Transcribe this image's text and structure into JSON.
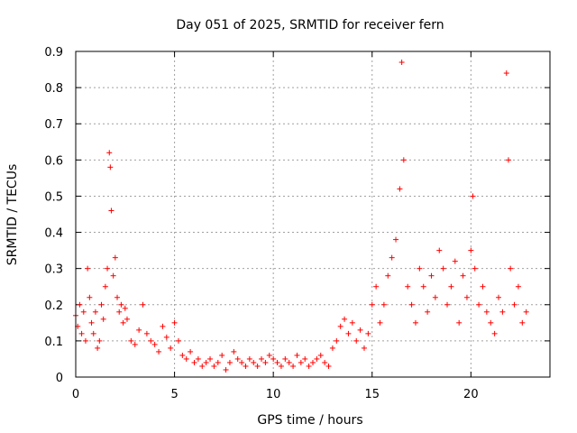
{
  "chart_data": {
    "type": "scatter",
    "title": "Day 051 of 2025, SRMTID for receiver fern",
    "xlabel": "GPS time / hours",
    "ylabel": "SRMTID / TECUs",
    "xlim": [
      0,
      24
    ],
    "ylim": [
      0,
      0.9
    ],
    "xticks": [
      0,
      5,
      10,
      15,
      20
    ],
    "yticks": [
      0,
      0.1,
      0.2,
      0.3,
      0.4,
      0.5,
      0.6,
      0.7,
      0.8,
      0.9
    ],
    "xtick_labels": [
      "0",
      "5",
      "10",
      "15",
      "20"
    ],
    "ytick_labels": [
      "0",
      "0.1",
      "0.2",
      "0.3",
      "0.4",
      "0.5",
      "0.6",
      "0.7",
      "0.8",
      "0.9"
    ],
    "grid": true,
    "marker": "plus",
    "color": "#ff0000",
    "series": [
      {
        "name": "SRMTID",
        "x": [
          0.0,
          0.1,
          0.2,
          0.3,
          0.4,
          0.5,
          0.6,
          0.7,
          0.8,
          0.9,
          1.0,
          1.1,
          1.2,
          1.3,
          1.4,
          1.5,
          1.6,
          1.7,
          1.75,
          1.8,
          1.9,
          2.0,
          2.1,
          2.2,
          2.3,
          2.4,
          2.5,
          2.6,
          2.8,
          3.0,
          3.2,
          3.4,
          3.6,
          3.8,
          4.0,
          4.2,
          4.4,
          4.6,
          4.8,
          5.0,
          5.2,
          5.4,
          5.6,
          5.8,
          6.0,
          6.2,
          6.4,
          6.6,
          6.8,
          7.0,
          7.2,
          7.4,
          7.6,
          7.8,
          8.0,
          8.2,
          8.4,
          8.6,
          8.8,
          9.0,
          9.2,
          9.4,
          9.6,
          9.8,
          10.0,
          10.2,
          10.4,
          10.6,
          10.8,
          11.0,
          11.2,
          11.4,
          11.6,
          11.8,
          12.0,
          12.2,
          12.4,
          12.6,
          12.8,
          13.0,
          13.2,
          13.4,
          13.6,
          13.8,
          14.0,
          14.2,
          14.4,
          14.6,
          14.8,
          15.0,
          15.2,
          15.4,
          15.6,
          15.8,
          16.0,
          16.2,
          16.4,
          16.5,
          16.6,
          16.8,
          17.0,
          17.2,
          17.4,
          17.6,
          17.8,
          18.0,
          18.2,
          18.4,
          18.6,
          18.8,
          19.0,
          19.2,
          19.4,
          19.6,
          19.8,
          20.0,
          20.1,
          20.2,
          20.4,
          20.6,
          20.8,
          21.0,
          21.2,
          21.4,
          21.6,
          21.8,
          21.9,
          22.0,
          22.2,
          22.4,
          22.6,
          22.8
        ],
        "y": [
          0.17,
          0.14,
          0.2,
          0.12,
          0.18,
          0.1,
          0.3,
          0.22,
          0.15,
          0.12,
          0.18,
          0.08,
          0.1,
          0.2,
          0.16,
          0.25,
          0.3,
          0.62,
          0.58,
          0.46,
          0.28,
          0.33,
          0.22,
          0.18,
          0.2,
          0.15,
          0.19,
          0.16,
          0.1,
          0.09,
          0.13,
          0.2,
          0.12,
          0.1,
          0.09,
          0.07,
          0.14,
          0.11,
          0.08,
          0.15,
          0.1,
          0.06,
          0.05,
          0.07,
          0.04,
          0.05,
          0.03,
          0.04,
          0.05,
          0.03,
          0.04,
          0.06,
          0.02,
          0.04,
          0.07,
          0.05,
          0.04,
          0.03,
          0.05,
          0.04,
          0.03,
          0.05,
          0.04,
          0.06,
          0.05,
          0.04,
          0.03,
          0.05,
          0.04,
          0.03,
          0.06,
          0.04,
          0.05,
          0.03,
          0.04,
          0.05,
          0.06,
          0.04,
          0.03,
          0.08,
          0.1,
          0.14,
          0.16,
          0.12,
          0.15,
          0.1,
          0.13,
          0.08,
          0.12,
          0.2,
          0.25,
          0.15,
          0.2,
          0.28,
          0.33,
          0.38,
          0.52,
          0.87,
          0.6,
          0.25,
          0.2,
          0.15,
          0.3,
          0.25,
          0.18,
          0.28,
          0.22,
          0.35,
          0.3,
          0.2,
          0.25,
          0.32,
          0.15,
          0.28,
          0.22,
          0.35,
          0.5,
          0.3,
          0.2,
          0.25,
          0.18,
          0.15,
          0.12,
          0.22,
          0.18,
          0.84,
          0.6,
          0.3,
          0.2,
          0.25,
          0.15,
          0.18
        ]
      }
    ]
  }
}
